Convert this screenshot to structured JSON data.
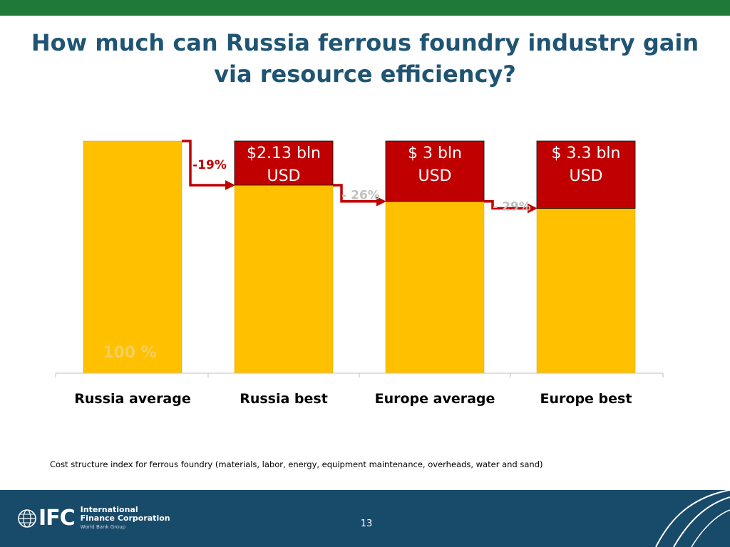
{
  "title": "How much can Russia ferrous foundry industry gain via resource efficiency?",
  "caption": "Cost structure index for ferrous foundry (materials, labor, energy, equipment maintenance, overheads, water and sand)",
  "footer": {
    "org_line1": "International",
    "org_line2": "Finance Corporation",
    "org_group": "World Bank Group",
    "logo_letters": "IFC",
    "page_number": "13"
  },
  "colors": {
    "top_band": "#1f7a3a",
    "title": "#1f5473",
    "bar_cost": "#ffc000",
    "bar_savings": "#c00000",
    "arrow": "#c00000",
    "footer": "#184a6a"
  },
  "chart_data": {
    "type": "bar",
    "stacked": true,
    "categories": [
      "Russia average",
      "Russia best",
      "Europe average",
      "Europe best"
    ],
    "series": [
      {
        "values": [
          100,
          81,
          74,
          71
        ]
      },
      {
        "values": [
          0,
          19,
          26,
          29
        ]
      }
    ],
    "ylim": [
      0,
      100
    ],
    "base_label": "100 %",
    "savings_labels": [
      "",
      "$2.13 bln\nUSD",
      "$ 3 bln\nUSD",
      "$ 3.3 bln\nUSD"
    ],
    "reduction_labels": [
      "-19%",
      "- 26%",
      "- 29%"
    ],
    "grid": false,
    "legend": "none"
  }
}
